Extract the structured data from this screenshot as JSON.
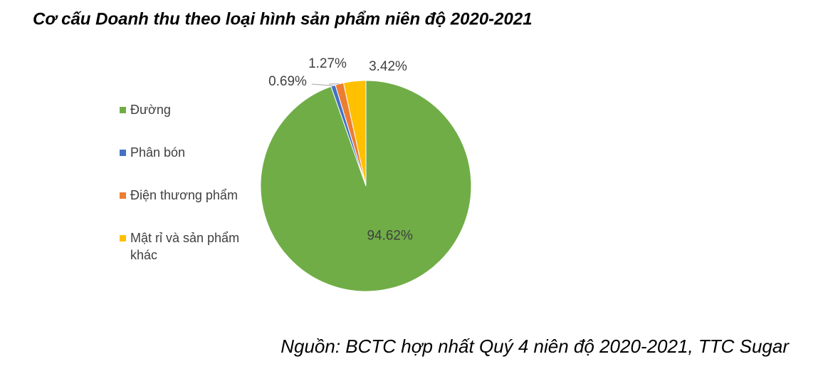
{
  "chart_data": {
    "type": "pie",
    "title": "Cơ cấu Doanh thu theo loại hình sản phẩm niên độ 2020-2021",
    "categories": [
      "Đường",
      "Phân bón",
      "Điện thương phẩm",
      "Mật rỉ và sản phẩm khác"
    ],
    "values": [
      94.62,
      0.69,
      1.27,
      3.42
    ],
    "value_labels": [
      "94.62%",
      "0.69%",
      "1.27%",
      "3.42%"
    ],
    "colors": [
      "#70ad47",
      "#4472c4",
      "#ed7d31",
      "#ffc000"
    ],
    "legend": "left",
    "note": "Nguồn: BCTC hợp nhất Quý 4 niên độ 2020-2021, TTC Sugar"
  }
}
